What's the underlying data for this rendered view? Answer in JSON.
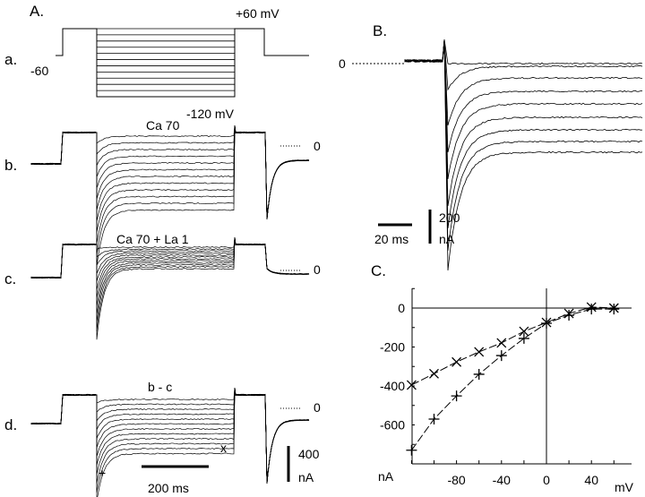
{
  "panel_a": {
    "label": "A.",
    "row_a": {
      "label": "a.",
      "v_hold": "-60",
      "v_top": "+60 mV",
      "v_bottom": "-120 mV"
    },
    "row_b": {
      "label": "b.",
      "title": "Ca 70",
      "zero": "0"
    },
    "row_c": {
      "label": "c.",
      "title": "Ca 70 + La 1",
      "zero": "0"
    },
    "row_d": {
      "label": "d.",
      "title": "b - c",
      "zero": "0",
      "marker_x": "x",
      "marker_plus": "+"
    },
    "time_scale": "200 ms",
    "current_scale_value": "400",
    "current_scale_unit": "nA"
  },
  "panel_b": {
    "label": "B.",
    "zero": "0",
    "current_scale_value": "200",
    "current_scale_unit": "nA",
    "time_scale": "20 ms"
  },
  "chart_data": {
    "type": "line",
    "label": "C.",
    "xlabel": "mV",
    "ylabel": "nA",
    "xlim": [
      -120,
      70
    ],
    "ylim": [
      -800,
      100
    ],
    "x_ticks": [
      -80,
      -40,
      0,
      40
    ],
    "y_ticks": [
      0,
      -200,
      -400,
      -600
    ],
    "x": [
      -120,
      -100,
      -80,
      -60,
      -40,
      -20,
      0,
      20,
      40,
      60
    ],
    "series": [
      {
        "marker": "x",
        "values": [
          -395,
          -337,
          -277,
          -225,
          -179,
          -120,
          -74,
          -28,
          5,
          0
        ]
      },
      {
        "marker": "+",
        "values": [
          -730,
          -570,
          -451,
          -340,
          -244,
          -156,
          -78,
          -37,
          -5,
          -5
        ]
      }
    ],
    "grid": false
  }
}
